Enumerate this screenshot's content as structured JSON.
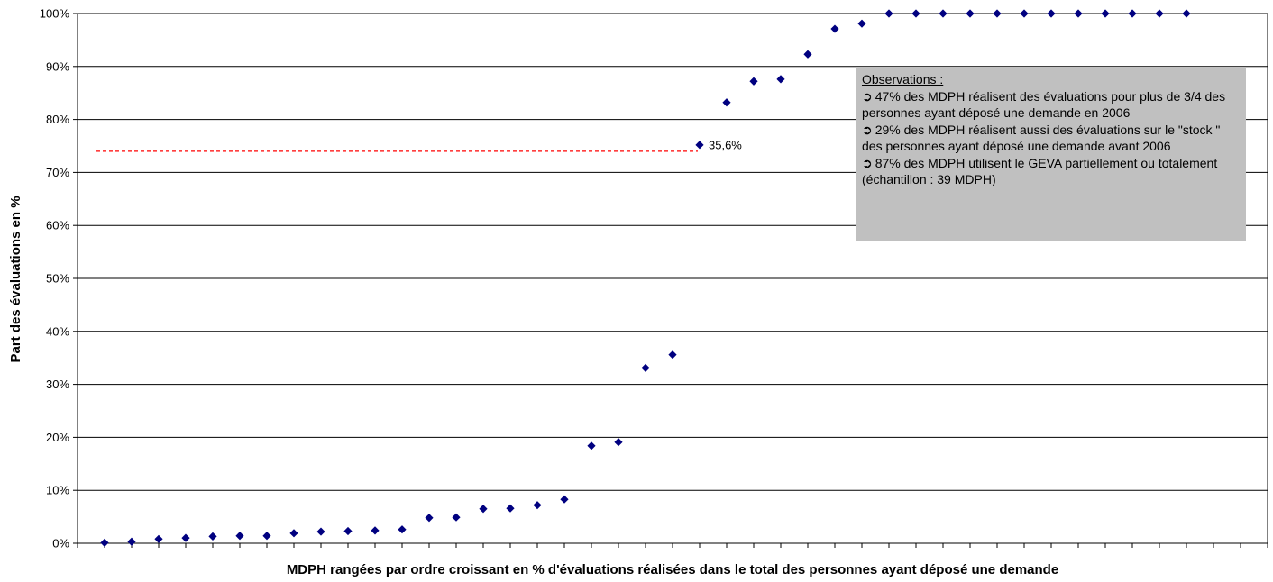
{
  "chart_data": {
    "type": "scatter",
    "ylabel": "Part des évaluations en %",
    "xlabel": "MDPH rangées par ordre croissant en % d'évaluations réalisées dans le total des personnes ayant déposé une demande",
    "ylim": [
      0,
      100
    ],
    "ytick_values": [
      0,
      10,
      20,
      30,
      40,
      50,
      60,
      70,
      80,
      90,
      100
    ],
    "ytick_labels": [
      "0%",
      "10%",
      "20%",
      "30%",
      "40%",
      "50%",
      "60%",
      "70%",
      "80%",
      "90%",
      "100%"
    ],
    "x_categories_count": 44,
    "grid": "horizontal",
    "marker_color": "#000080",
    "values": [
      0.1,
      0.3,
      0.8,
      1.0,
      1.3,
      1.4,
      1.4,
      1.9,
      2.2,
      2.3,
      2.4,
      2.6,
      4.8,
      4.9,
      6.5,
      6.6,
      7.2,
      8.3,
      18.4,
      19.1,
      33.1,
      35.6,
      75.2,
      83.2,
      87.2,
      87.6,
      92.3,
      97.1,
      98.1,
      100,
      100,
      100,
      100,
      100,
      100,
      100,
      100,
      100,
      100,
      100,
      100
    ],
    "reference_line": {
      "value": 74,
      "style": "dashed",
      "color": "#ff0000",
      "end_index": 22
    },
    "annotations": [
      {
        "point_index": 22,
        "text": "35,6%"
      }
    ]
  },
  "observations": {
    "title": "Observations :",
    "lines": [
      "47% des MDPH réalisent des évaluations pour plus de 3/4 des personnes ayant déposé une demande en 2006",
      "29% des MDPH réalisent aussi des évaluations sur le \"stock \" des personnes ayant déposé une demande avant 2006",
      "87% des MDPH utilisent le GEVA partiellement ou totalement (échantillon : 39 MDPH)"
    ],
    "bullet_icon": "arrow-right-icon"
  }
}
